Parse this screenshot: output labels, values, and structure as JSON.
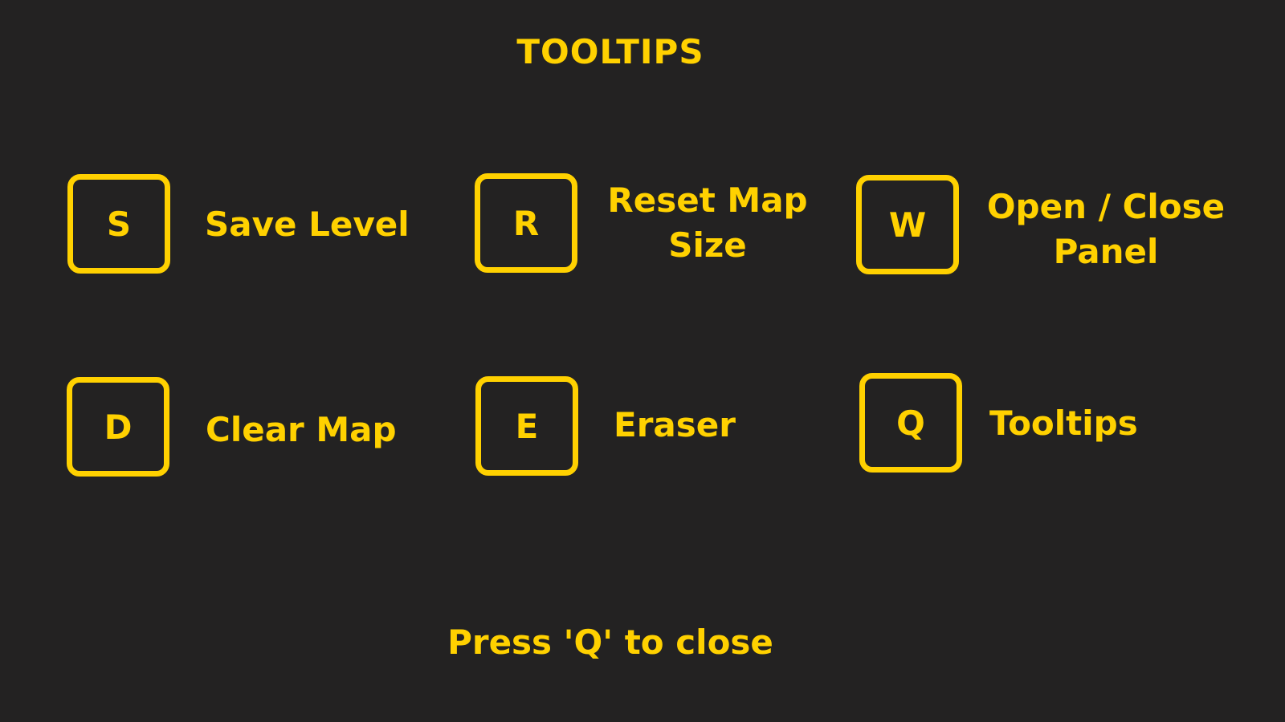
{
  "title": "TOOLTIPS",
  "shortcuts": [
    {
      "key": "S",
      "label": "Save Level"
    },
    {
      "key": "R",
      "label": "Reset Map Size"
    },
    {
      "key": "W",
      "label": "Open / Close Panel"
    },
    {
      "key": "D",
      "label": "Clear Map"
    },
    {
      "key": "E",
      "label": "Eraser"
    },
    {
      "key": "Q",
      "label": "Tooltips"
    }
  ],
  "footer": "Press 'Q' to close",
  "colors": {
    "background": "#232222",
    "accent": "#FFD100"
  }
}
